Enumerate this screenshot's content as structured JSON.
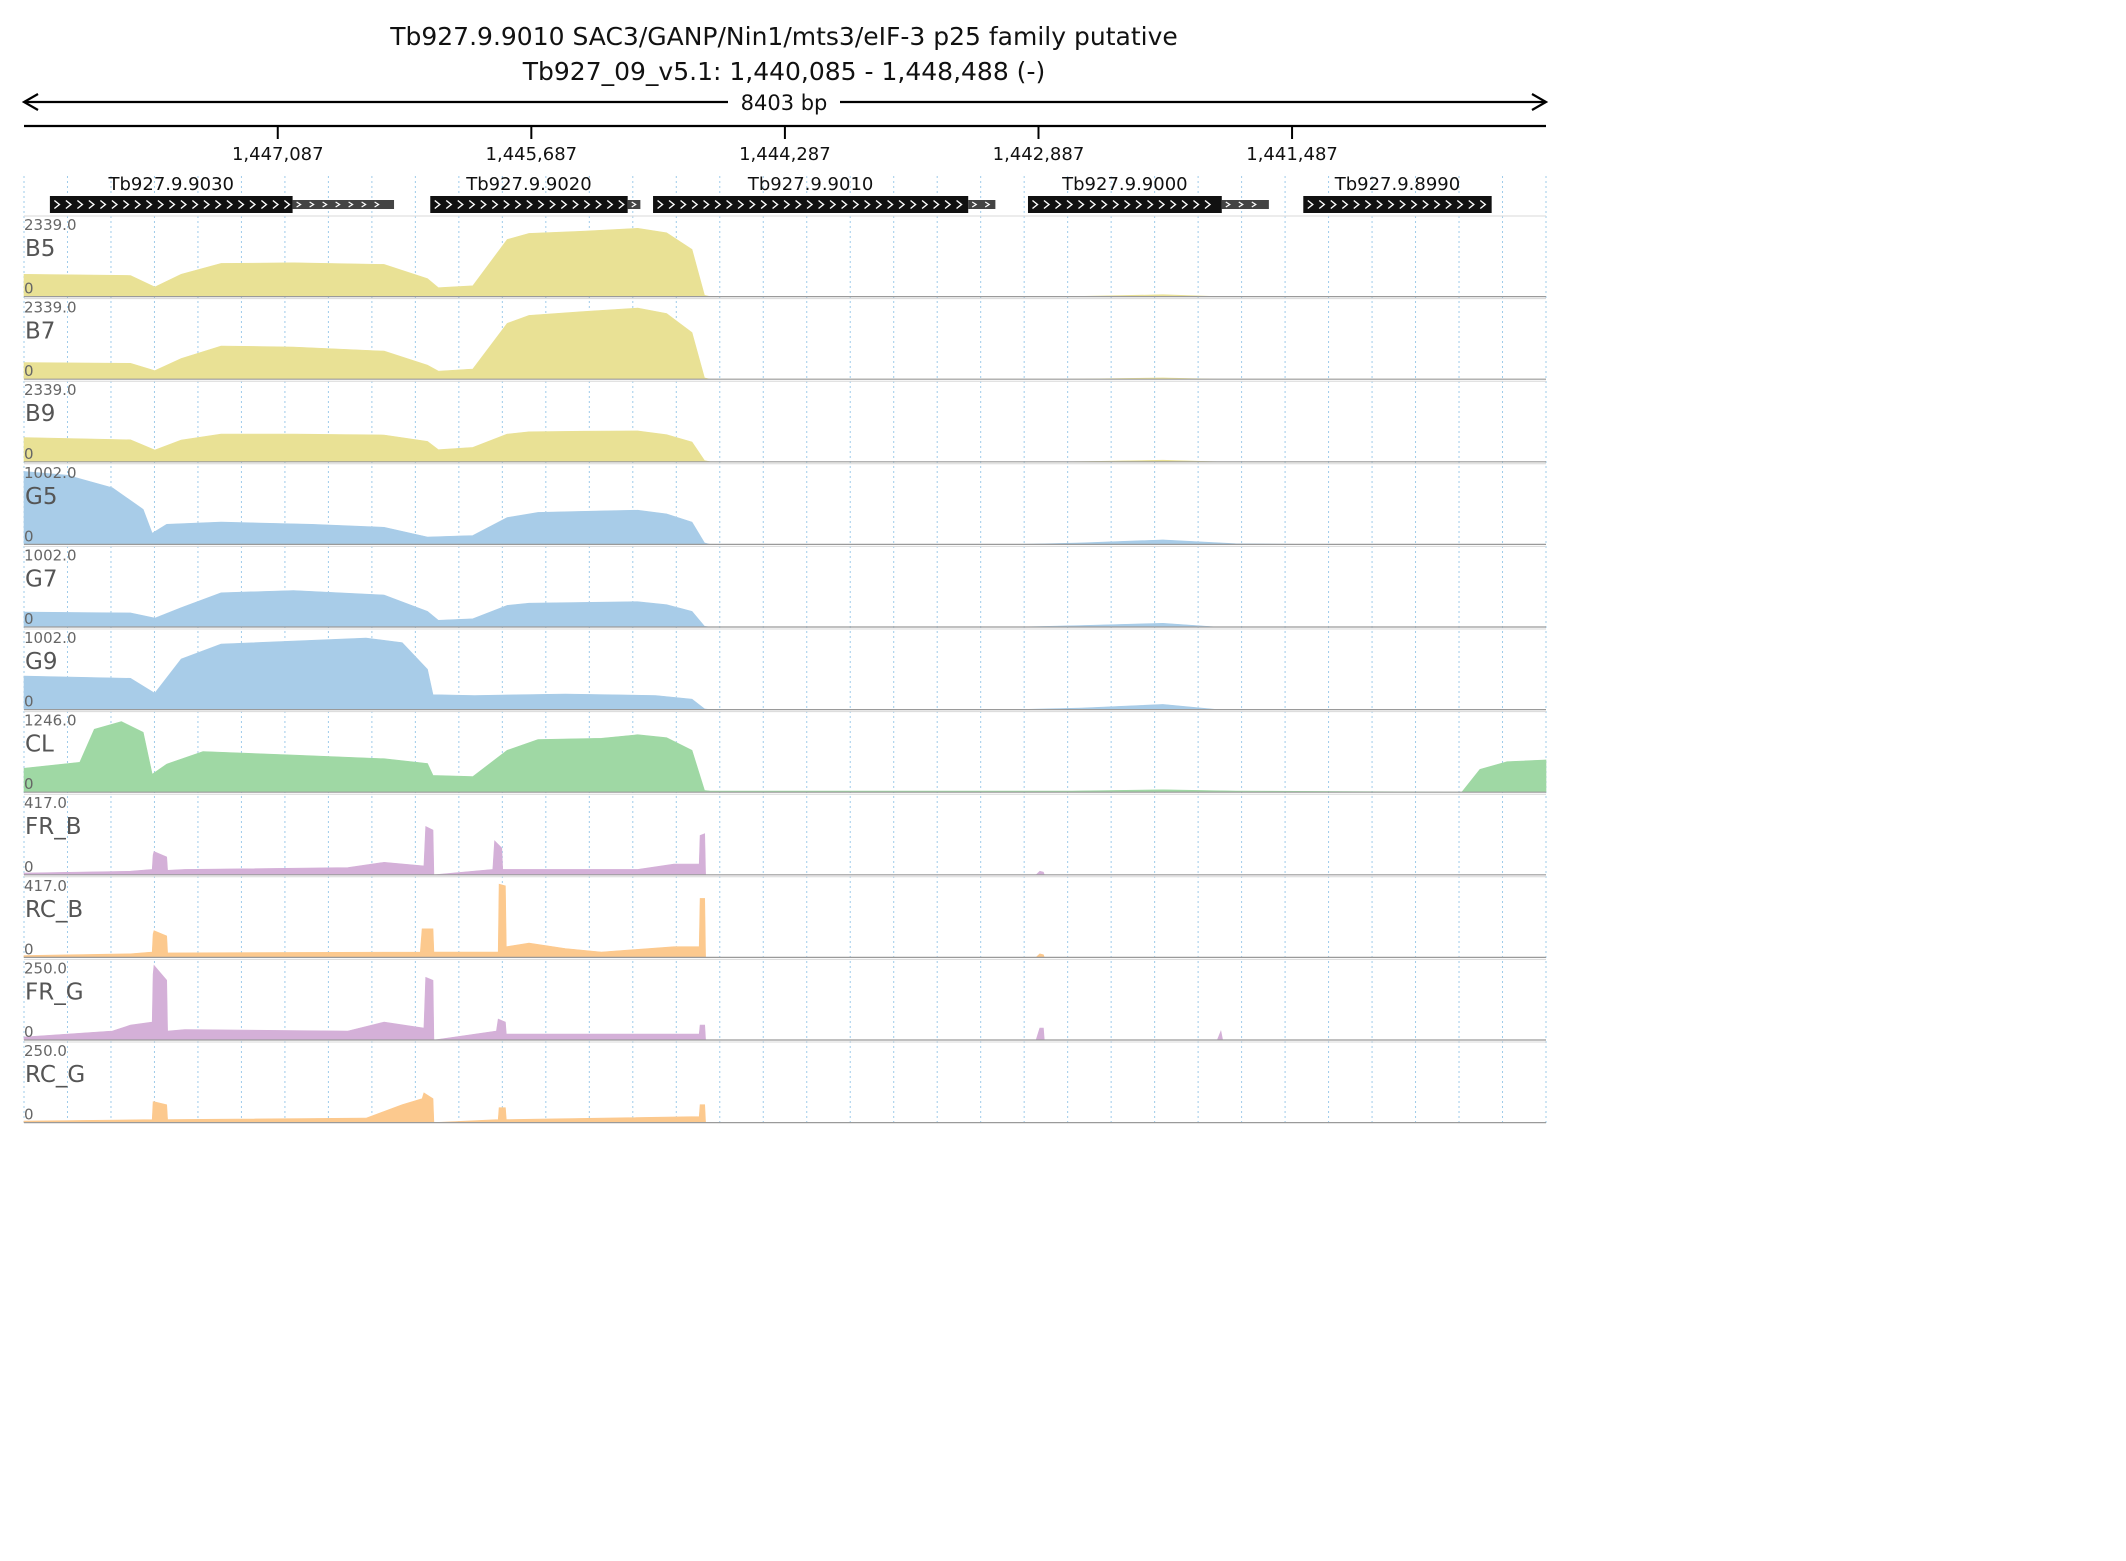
{
  "title": "Tb927.9.9010  SAC3/GANP/Nin1/mts3/eIF-3 p25 family  putative",
  "subtitle": "Tb927_09_v5.1: 1,440,085 - 1,448,488 (-)",
  "span_label": "8403 bp",
  "chart_data": {
    "type": "area",
    "region": {
      "chrom": "Tb927_09_v5.1",
      "start": 1440085,
      "end": 1448488,
      "strand": "-"
    },
    "x_direction": "descending",
    "ticks": [
      {
        "pos": 1447087,
        "label": "1,447,087"
      },
      {
        "pos": 1445687,
        "label": "1,445,687"
      },
      {
        "pos": 1444287,
        "label": "1,444,287"
      },
      {
        "pos": 1442887,
        "label": "1,442,887"
      },
      {
        "pos": 1441487,
        "label": "1,441,487"
      }
    ],
    "genes": [
      {
        "name": "Tb927.9.9030",
        "cds": [
          1448345,
          1447005
        ],
        "utr": [
          1447005,
          1446445
        ]
      },
      {
        "name": "Tb927.9.9020",
        "cds": [
          1446245,
          1445155
        ],
        "utr": [
          1445155,
          1445085
        ]
      },
      {
        "name": "Tb927.9.9010",
        "cds": [
          1445015,
          1443275
        ],
        "utr": [
          1443275,
          1443125
        ]
      },
      {
        "name": "Tb927.9.9000",
        "cds": [
          1442945,
          1441875
        ],
        "utr": [
          1441875,
          1441615
        ]
      },
      {
        "name": "Tb927.9.8990",
        "cds": [
          1441425,
          1440385
        ],
        "utr": null
      }
    ],
    "grid": {
      "vertical_dotted": true,
      "color": "#9ecbea"
    },
    "tracks": [
      {
        "name": "B5",
        "max": 2339.0,
        "max_label": "2339.0",
        "zero_label": "0",
        "color": "#e9e195",
        "x": [
          1448488,
          1447900,
          1447766,
          1447620,
          1447400,
          1447000,
          1446500,
          1446260,
          1446200,
          1446010,
          1445820,
          1445700,
          1445400,
          1445100,
          1444940,
          1444800,
          1444731,
          1444700,
          1442700,
          1442200,
          1441900,
          1440085
        ],
        "y": [
          700,
          660,
          300,
          700,
          1040,
          1060,
          1010,
          560,
          280,
          340,
          1790,
          1980,
          2050,
          2140,
          2000,
          1480,
          40,
          0,
          0,
          60,
          0,
          0
        ]
      },
      {
        "name": "B7",
        "max": 2339.0,
        "max_label": "2339.0",
        "zero_label": "0",
        "color": "#e9e195",
        "x": [
          1448488,
          1447900,
          1447766,
          1447620,
          1447400,
          1447000,
          1446500,
          1446260,
          1446200,
          1446010,
          1445820,
          1445700,
          1445400,
          1445100,
          1444940,
          1444800,
          1444731,
          1444700,
          1442700,
          1442200,
          1441900,
          1440085
        ],
        "y": [
          520,
          500,
          270,
          650,
          1040,
          1010,
          880,
          440,
          250,
          320,
          1750,
          2000,
          2120,
          2230,
          2060,
          1460,
          40,
          0,
          0,
          40,
          0,
          0
        ]
      },
      {
        "name": "B9",
        "max": 2339.0,
        "max_label": "2339.0",
        "zero_label": "0",
        "color": "#e9e195",
        "x": [
          1448488,
          1447900,
          1447766,
          1447620,
          1447400,
          1447000,
          1446500,
          1446260,
          1446200,
          1446010,
          1445820,
          1445700,
          1445400,
          1445100,
          1444940,
          1444800,
          1444731,
          1444700,
          1442700,
          1442200,
          1441900,
          1440085
        ],
        "y": [
          760,
          690,
          370,
          680,
          870,
          870,
          840,
          640,
          380,
          450,
          870,
          940,
          960,
          970,
          850,
          620,
          40,
          0,
          0,
          50,
          0,
          0
        ]
      },
      {
        "name": "G5",
        "max": 1002.0,
        "max_label": "1002.0",
        "zero_label": "0",
        "color": "#a8cce8",
        "x": [
          1448488,
          1448250,
          1448000,
          1447830,
          1447780,
          1447700,
          1447400,
          1446900,
          1446500,
          1446260,
          1446010,
          1445820,
          1445650,
          1445300,
          1445100,
          1444940,
          1444800,
          1444731,
          1444700,
          1443000,
          1442650,
          1442200,
          1441800,
          1441400,
          1440085
        ],
        "y": [
          980,
          930,
          760,
          470,
          150,
          270,
          300,
          270,
          230,
          100,
          120,
          360,
          430,
          450,
          460,
          410,
          300,
          20,
          0,
          0,
          20,
          60,
          10,
          0,
          0
        ]
      },
      {
        "name": "G7",
        "max": 1002.0,
        "max_label": "1002.0",
        "zero_label": "0",
        "color": "#a8cce8",
        "x": [
          1448488,
          1447900,
          1447766,
          1447620,
          1447400,
          1447000,
          1446500,
          1446260,
          1446200,
          1446010,
          1445820,
          1445700,
          1445400,
          1445100,
          1444940,
          1444800,
          1444731,
          1444700,
          1443000,
          1442650,
          1442200,
          1441900,
          1440085
        ],
        "y": [
          200,
          190,
          120,
          260,
          460,
          490,
          430,
          210,
          90,
          110,
          290,
          320,
          330,
          340,
          300,
          210,
          10,
          0,
          0,
          20,
          50,
          0,
          0
        ]
      },
      {
        "name": "G9",
        "max": 1002.0,
        "max_label": "1002.0",
        "zero_label": "0",
        "color": "#a8cce8",
        "x": [
          1448488,
          1447900,
          1447766,
          1447620,
          1447400,
          1447000,
          1446600,
          1446400,
          1446260,
          1446230,
          1446000,
          1445500,
          1445000,
          1444800,
          1444731,
          1444700,
          1443000,
          1442650,
          1442200,
          1441900,
          1440085
        ],
        "y": [
          450,
          420,
          220,
          680,
          880,
          920,
          960,
          900,
          540,
          200,
          190,
          210,
          190,
          140,
          10,
          0,
          0,
          20,
          70,
          0,
          0
        ]
      },
      {
        "name": "CL",
        "max": 1246.0,
        "max_label": "1246.0",
        "zero_label": "0",
        "color": "#9fd8a4",
        "x": [
          1448488,
          1448180,
          1448100,
          1447950,
          1447830,
          1447780,
          1447700,
          1447500,
          1447000,
          1446500,
          1446260,
          1446230,
          1446010,
          1445820,
          1445650,
          1445300,
          1445100,
          1444940,
          1444800,
          1444731,
          1444700,
          1442700,
          1442200,
          1441800,
          1440550,
          1440450,
          1440300,
          1440085
        ],
        "y": [
          400,
          500,
          1050,
          1180,
          1000,
          300,
          470,
          680,
          620,
          560,
          480,
          280,
          260,
          700,
          880,
          900,
          960,
          910,
          700,
          30,
          20,
          20,
          40,
          20,
          0,
          380,
          510,
          540
        ]
      },
      {
        "name": "FR_B",
        "max": 417.0,
        "max_label": "417.0",
        "zero_label": "0",
        "color": "#d4b0d8",
        "x": [
          1448488,
          1447900,
          1447780,
          1447775,
          1447770,
          1447700,
          1447695,
          1447600,
          1446700,
          1446500,
          1446280,
          1446270,
          1446230,
          1446225,
          1445900,
          1445890,
          1445850,
          1445845,
          1445100,
          1444900,
          1444760,
          1444755,
          1444730,
          1444725,
          1442900,
          1442880,
          1442860,
          1442855,
          1440085
        ],
        "y": [
          10,
          20,
          30,
          110,
          130,
          100,
          25,
          30,
          40,
          70,
          50,
          270,
          250,
          0,
          30,
          190,
          150,
          30,
          30,
          60,
          60,
          220,
          230,
          0,
          0,
          20,
          15,
          0,
          0
        ]
      },
      {
        "name": "RC_B",
        "max": 417.0,
        "max_label": "417.0",
        "zero_label": "0",
        "color": "#fcc98e",
        "x": [
          1448488,
          1447900,
          1447780,
          1447775,
          1447770,
          1447700,
          1447695,
          1446300,
          1446290,
          1446230,
          1446225,
          1445870,
          1445865,
          1445830,
          1445825,
          1445700,
          1445500,
          1445300,
          1444900,
          1444760,
          1444755,
          1444730,
          1444725,
          1442900,
          1442880,
          1442860,
          1442855,
          1440085
        ],
        "y": [
          10,
          20,
          30,
          130,
          150,
          120,
          25,
          30,
          160,
          160,
          30,
          30,
          410,
          400,
          60,
          80,
          50,
          30,
          60,
          60,
          330,
          330,
          0,
          0,
          20,
          15,
          0,
          0
        ]
      },
      {
        "name": "FR_G",
        "max": 250.0,
        "max_label": "250.0",
        "zero_label": "0",
        "color": "#d4b0d8",
        "x": [
          1448488,
          1448000,
          1447900,
          1447780,
          1447775,
          1447770,
          1447700,
          1447695,
          1447600,
          1446700,
          1446500,
          1446280,
          1446270,
          1446230,
          1446225,
          1445880,
          1445870,
          1445830,
          1445825,
          1444760,
          1444755,
          1444730,
          1444725,
          1442900,
          1442880,
          1442860,
          1442855,
          1441900,
          1441880,
          1441870,
          1440085
        ],
        "y": [
          10,
          30,
          50,
          60,
          220,
          250,
          200,
          30,
          35,
          30,
          60,
          40,
          210,
          200,
          0,
          30,
          70,
          60,
          20,
          20,
          50,
          50,
          0,
          0,
          40,
          40,
          0,
          0,
          30,
          0,
          0
        ]
      },
      {
        "name": "RC_G",
        "max": 250.0,
        "max_label": "250.0",
        "zero_label": "0",
        "color": "#fcc98e",
        "x": [
          1448488,
          1447780,
          1447775,
          1447770,
          1447700,
          1447695,
          1446600,
          1446400,
          1446290,
          1446280,
          1446230,
          1446225,
          1445870,
          1445865,
          1445830,
          1445825,
          1444760,
          1444755,
          1444730,
          1444725,
          1440085
        ],
        "y": [
          5,
          10,
          70,
          70,
          60,
          10,
          15,
          60,
          80,
          100,
          80,
          0,
          10,
          50,
          50,
          10,
          20,
          60,
          60,
          0,
          0
        ]
      }
    ]
  }
}
